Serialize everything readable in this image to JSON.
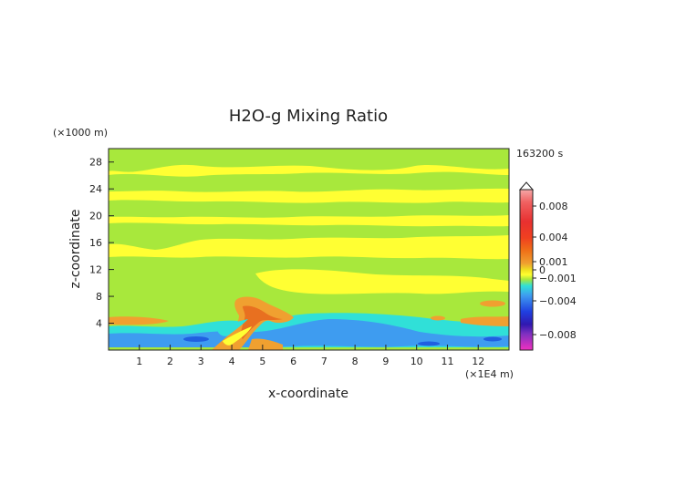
{
  "chart_data": {
    "type": "heatmap",
    "title": "H2O-g Mixing Ratio",
    "xlabel": "x-coordinate",
    "ylabel": "z-coordinate",
    "x_unit": "(×1E4 m)",
    "y_unit": "(×1000 m)",
    "time_label": "163200 s",
    "xlim": [
      0,
      13
    ],
    "ylim": [
      0,
      30
    ],
    "x_ticks": [
      "1",
      "2",
      "3",
      "4",
      "5",
      "6",
      "7",
      "8",
      "9",
      "10",
      "11",
      "12"
    ],
    "y_ticks": [
      "4",
      "8",
      "12",
      "16",
      "20",
      "24",
      "28"
    ],
    "colorbar": {
      "labels": [
        "0.008",
        "0.004",
        "0.001",
        "0",
        "−0.001",
        "−0.004",
        "−0.008"
      ]
    },
    "regions": [
      {
        "name": "green-layer",
        "value": -0.0005,
        "color": "#a8e83c",
        "layers": [
          [
            17.0,
            20.0
          ],
          [
            21.5,
            23.2
          ],
          [
            24.8,
            28.4
          ]
        ]
      },
      {
        "name": "green-low",
        "value": -0.0005,
        "color": "#a8e83c",
        "layers": [
          [
            4.0,
            13.5
          ]
        ]
      },
      {
        "name": "cyan-band",
        "value": -0.0015,
        "color": "#30e0d8",
        "layers": [
          [
            1.5,
            3.8
          ]
        ]
      },
      {
        "name": "blue-core",
        "value": -0.003,
        "color": "#3e9cf0",
        "layers": [
          [
            1.0,
            2.2
          ]
        ]
      },
      {
        "name": "orange-plume",
        "value": 0.0012,
        "color": "#f0a030",
        "layers": [
          [
            0.3,
            8.0
          ]
        ]
      }
    ]
  }
}
